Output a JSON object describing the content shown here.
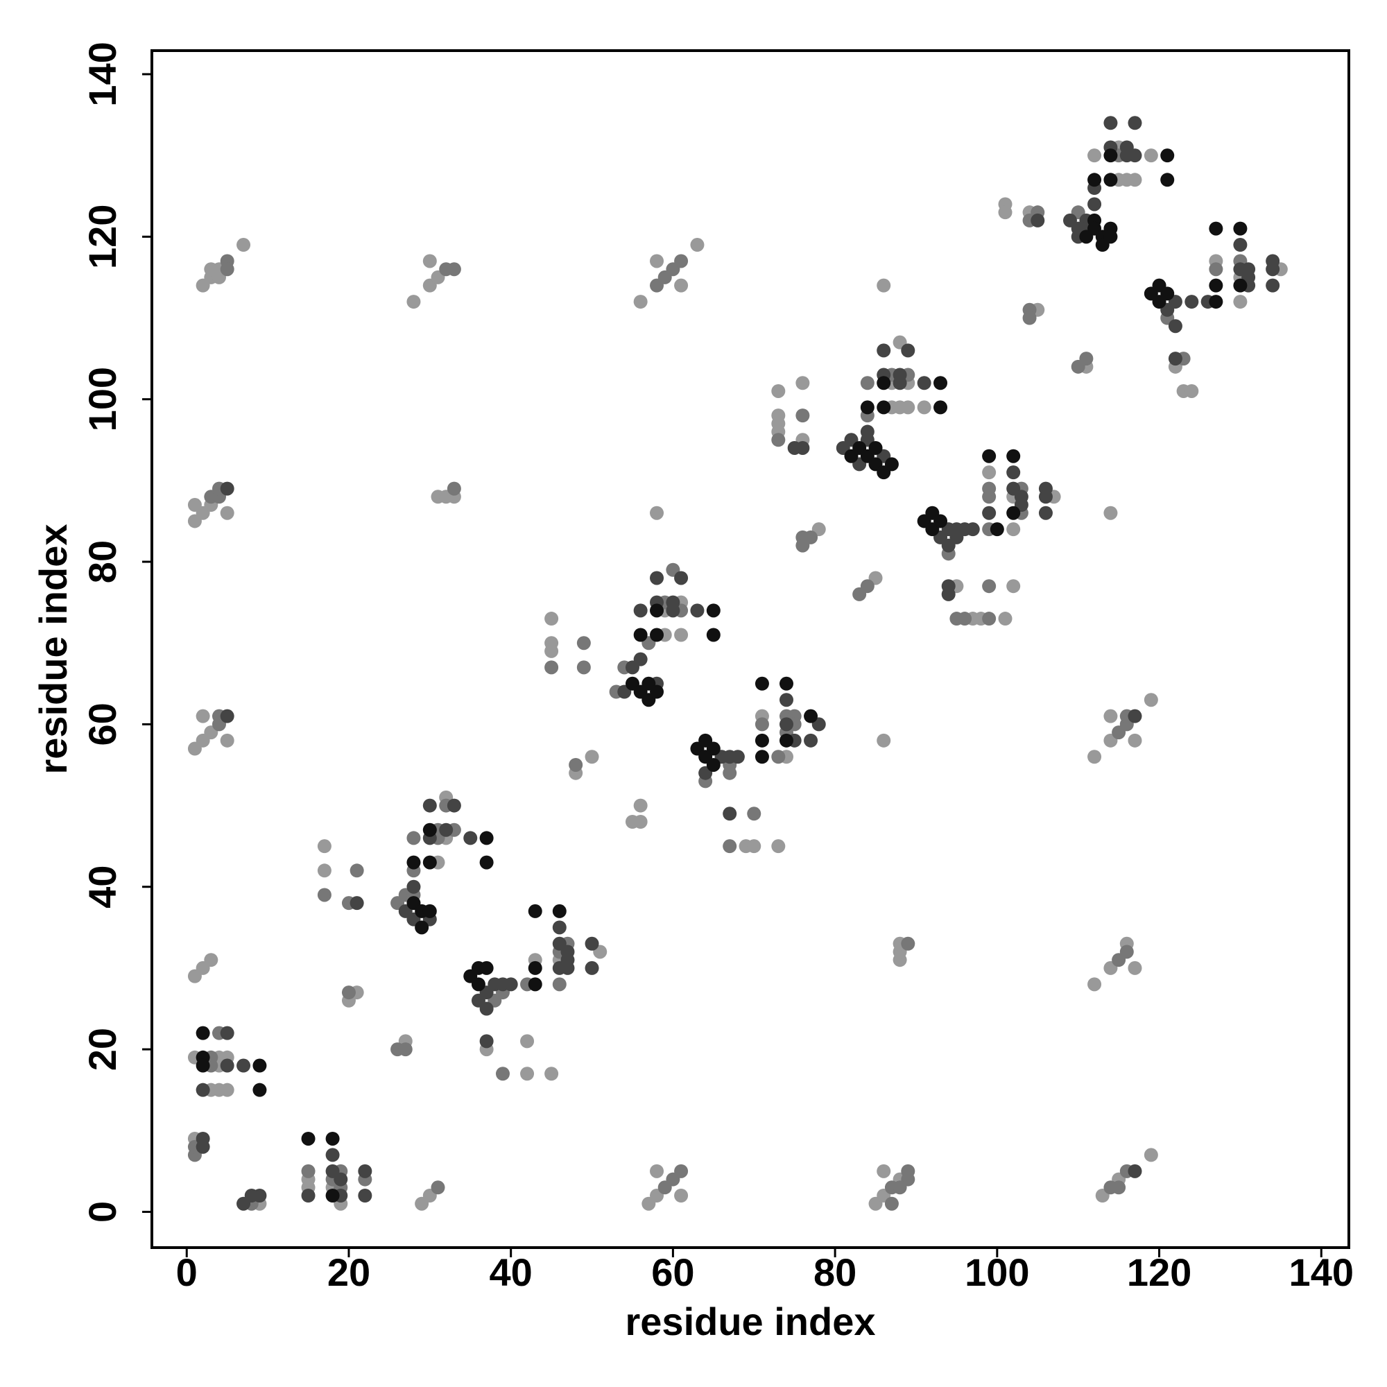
{
  "chart_data": {
    "type": "scatter",
    "xlabel": "residue index",
    "ylabel": "residue index",
    "xlim": [
      -4.3,
      143.4
    ],
    "ylim": [
      -4.4,
      142.9
    ],
    "xticks": [
      0,
      20,
      40,
      60,
      80,
      100,
      120,
      140
    ],
    "yticks": [
      0,
      20,
      40,
      60,
      80,
      100,
      120,
      140
    ],
    "grid": false,
    "series": [
      {
        "color": "#999999",
        "x": [
          1,
          9,
          15,
          15,
          18,
          19,
          29,
          30,
          57,
          58,
          61,
          58,
          85,
          86,
          88,
          86,
          113,
          115,
          119,
          1,
          3,
          4,
          4,
          4,
          5,
          5,
          1,
          2,
          3,
          20,
          21,
          27,
          17,
          17,
          31,
          32,
          32,
          37,
          43,
          42,
          42,
          45,
          46,
          51,
          45,
          45,
          45,
          48,
          50,
          55,
          56,
          56,
          59,
          59,
          61,
          61,
          58,
          71,
          69,
          70,
          73,
          74,
          73,
          73,
          73,
          73,
          76,
          76,
          78,
          85,
          86,
          86,
          87,
          87,
          88,
          88,
          89,
          89,
          91,
          99,
          102,
          102,
          107,
          95,
          97,
          98,
          101,
          102,
          101,
          101,
          104,
          105,
          111,
          112,
          115,
          115,
          116,
          117,
          119,
          122,
          123,
          124,
          127,
          130,
          130,
          135,
          2,
          3,
          3,
          4,
          4,
          7,
          28,
          30,
          30,
          31,
          56,
          58,
          61,
          63,
          1,
          1,
          2,
          3,
          5,
          31,
          32,
          33,
          1,
          2,
          2,
          3,
          5,
          112,
          114,
          114,
          117,
          119,
          112,
          114,
          116,
          117,
          88,
          88,
          88,
          114
        ],
        "values": [
          9,
          1,
          4,
          3,
          3,
          1,
          1,
          2,
          1,
          2,
          2,
          5,
          1,
          2,
          4,
          5,
          2,
          4,
          7,
          19,
          15,
          19,
          18,
          15,
          19,
          15,
          29,
          30,
          31,
          26,
          27,
          21,
          45,
          42,
          43,
          46,
          51,
          20,
          31,
          21,
          17,
          17,
          31,
          32,
          73,
          70,
          69,
          54,
          56,
          48,
          48,
          50,
          74,
          71,
          71,
          75,
          86,
          61,
          45,
          45,
          45,
          56,
          101,
          98,
          97,
          96,
          102,
          95,
          84,
          78,
          114,
          58,
          99,
          102,
          107,
          99,
          102,
          99,
          99,
          91,
          88,
          84,
          88,
          77,
          73,
          73,
          73,
          77,
          124,
          123,
          123,
          111,
          104,
          130,
          131,
          127,
          127,
          127,
          130,
          104,
          101,
          101,
          117,
          115,
          112,
          116,
          114,
          115,
          116,
          116,
          115,
          119,
          112,
          114,
          117,
          115,
          112,
          117,
          114,
          119,
          87,
          85,
          86,
          87,
          86,
          88,
          88,
          88,
          57,
          58,
          61,
          59,
          58,
          56,
          58,
          61,
          58,
          63,
          28,
          30,
          33,
          30,
          31,
          32,
          33,
          86
        ]
      },
      {
        "color": "#777777",
        "x": [
          1,
          1,
          8,
          15,
          18,
          19,
          19,
          22,
          31,
          59,
          60,
          61,
          87,
          89,
          89,
          87,
          88,
          114,
          116,
          115,
          3,
          3,
          4,
          20,
          26,
          27,
          17,
          20,
          21,
          26,
          27,
          28,
          28,
          28,
          31,
          31,
          32,
          33,
          38,
          39,
          39,
          42,
          46,
          47,
          46,
          45,
          49,
          49,
          48,
          53,
          54,
          57,
          59,
          60,
          61,
          64,
          67,
          67,
          67,
          70,
          71,
          74,
          74,
          75,
          75,
          73,
          73,
          76,
          76,
          76,
          77,
          83,
          84,
          84,
          84,
          87,
          89,
          94,
          99,
          99,
          99,
          103,
          103,
          95,
          96,
          99,
          99,
          104,
          105,
          104,
          104,
          110,
          111,
          110,
          115,
          121,
          123,
          127,
          130,
          5,
          5,
          32,
          33,
          58,
          59,
          60,
          61,
          3,
          4,
          4,
          33,
          4,
          4,
          115,
          116,
          116,
          115,
          116,
          89
        ],
        "values": [
          7,
          8,
          1,
          5,
          4,
          5,
          3,
          4,
          3,
          3,
          4,
          5,
          3,
          4,
          5,
          1,
          3,
          3,
          5,
          3,
          19,
          18,
          22,
          27,
          20,
          20,
          39,
          38,
          42,
          38,
          39,
          39,
          42,
          46,
          46,
          47,
          50,
          47,
          26,
          27,
          17,
          28,
          32,
          33,
          28,
          67,
          70,
          67,
          55,
          64,
          67,
          70,
          75,
          79,
          74,
          53,
          55,
          54,
          45,
          49,
          60,
          61,
          59,
          61,
          60,
          56,
          95,
          98,
          83,
          82,
          83,
          76,
          77,
          98,
          102,
          103,
          103,
          81,
          84,
          88,
          89,
          89,
          86,
          73,
          73,
          73,
          77,
          122,
          123,
          111,
          110,
          104,
          105,
          123,
          130,
          110,
          105,
          116,
          117,
          117,
          116,
          116,
          116,
          114,
          115,
          116,
          117,
          88,
          88,
          89,
          89,
          60,
          61,
          59,
          60,
          61,
          31,
          32,
          33
        ]
      },
      {
        "color": "#444444",
        "x": [
          2,
          2,
          7,
          8,
          9,
          15,
          18,
          18,
          19,
          19,
          22,
          22,
          117,
          2,
          5,
          5,
          7,
          21,
          27,
          28,
          30,
          28,
          30,
          30,
          32,
          33,
          35,
          37,
          38,
          39,
          36,
          37,
          40,
          37,
          46,
          46,
          46,
          47,
          47,
          47,
          50,
          50,
          54,
          55,
          56,
          56,
          58,
          58,
          58,
          60,
          60,
          61,
          63,
          64,
          66,
          67,
          68,
          67,
          74,
          74,
          75,
          77,
          78,
          75,
          76,
          81,
          82,
          83,
          84,
          86,
          84,
          86,
          86,
          88,
          88,
          89,
          91,
          93,
          94,
          94,
          95,
          95,
          96,
          97,
          99,
          102,
          102,
          103,
          103,
          106,
          106,
          106,
          94,
          94,
          105,
          109,
          110,
          110,
          111,
          111,
          112,
          112,
          114,
          114,
          116,
          116,
          117,
          117,
          121,
          122,
          122,
          122,
          124,
          126,
          130,
          130,
          131,
          131,
          131,
          134,
          134,
          134,
          5,
          5,
          117
        ],
        "values": [
          8,
          9,
          1,
          2,
          2,
          2,
          7,
          5,
          4,
          2,
          5,
          2,
          5,
          15,
          22,
          18,
          18,
          38,
          37,
          36,
          36,
          40,
          46,
          50,
          47,
          50,
          46,
          27,
          28,
          28,
          26,
          25,
          28,
          21,
          35,
          33,
          30,
          32,
          31,
          30,
          33,
          30,
          64,
          67,
          68,
          74,
          65,
          75,
          78,
          74,
          75,
          78,
          74,
          54,
          56,
          56,
          56,
          49,
          63,
          60,
          58,
          58,
          60,
          94,
          94,
          94,
          95,
          92,
          95,
          93,
          96,
          103,
          106,
          102,
          103,
          106,
          102,
          83,
          84,
          82,
          83,
          84,
          84,
          84,
          86,
          91,
          89,
          88,
          87,
          89,
          88,
          86,
          77,
          76,
          122,
          122,
          121,
          120,
          122,
          121,
          124,
          126,
          131,
          134,
          130,
          131,
          134,
          130,
          111,
          112,
          109,
          105,
          112,
          112,
          119,
          116,
          116,
          115,
          114,
          117,
          114,
          116,
          89,
          61,
          61
        ]
      },
      {
        "color": "#111111",
        "x": [
          15,
          18,
          18,
          2,
          2,
          2,
          9,
          9,
          28,
          29,
          29,
          30,
          28,
          30,
          30,
          37,
          37,
          35,
          36,
          36,
          37,
          43,
          43,
          46,
          43,
          55,
          56,
          56,
          57,
          57,
          58,
          58,
          58,
          65,
          65,
          63,
          64,
          64,
          65,
          65,
          71,
          71,
          71,
          74,
          74,
          77,
          82,
          83,
          84,
          85,
          85,
          86,
          87,
          84,
          86,
          86,
          93,
          93,
          91,
          92,
          92,
          93,
          100,
          99,
          102,
          102,
          111,
          112,
          112,
          113,
          113,
          114,
          114,
          112,
          114,
          114,
          121,
          121,
          119,
          120,
          120,
          121,
          127,
          127,
          127,
          130,
          130
        ],
        "values": [
          9,
          9,
          2,
          22,
          19,
          18,
          18,
          15,
          38,
          37,
          35,
          37,
          43,
          43,
          47,
          46,
          43,
          29,
          30,
          28,
          30,
          28,
          30,
          37,
          37,
          65,
          64,
          71,
          63,
          65,
          64,
          71,
          74,
          74,
          71,
          57,
          58,
          56,
          57,
          55,
          56,
          58,
          65,
          65,
          58,
          61,
          93,
          94,
          93,
          94,
          92,
          91,
          92,
          99,
          99,
          102,
          102,
          99,
          85,
          86,
          84,
          85,
          84,
          93,
          93,
          86,
          120,
          122,
          121,
          120,
          119,
          121,
          120,
          127,
          127,
          130,
          130,
          127,
          113,
          114,
          112,
          113,
          112,
          114,
          121,
          121,
          114
        ]
      }
    ]
  }
}
